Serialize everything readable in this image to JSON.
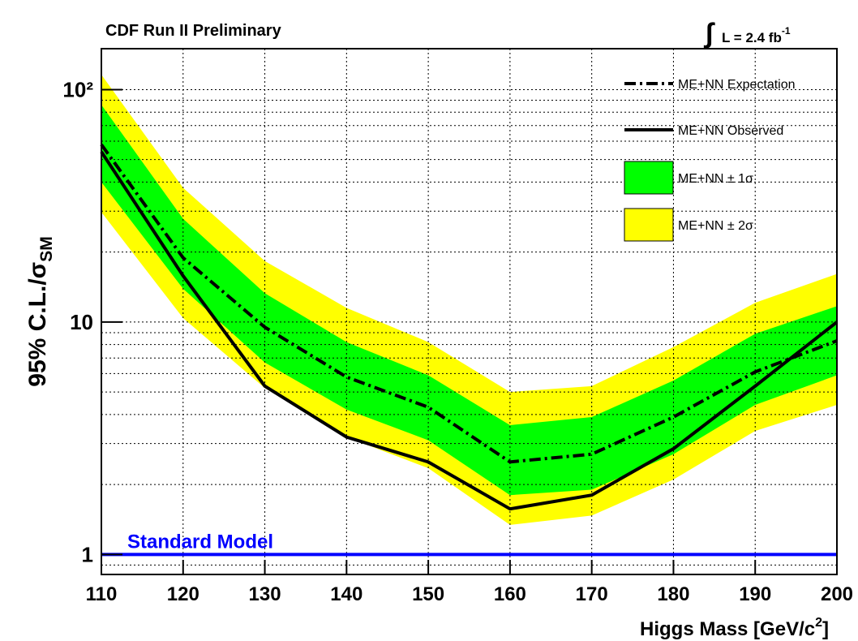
{
  "chart_data": {
    "type": "line",
    "title": "CDF Run II Preliminary",
    "luminosity": {
      "symbol": "∫",
      "text": "L = 2.4 fb",
      "sup": "-1"
    },
    "ylabel": {
      "text": "95% C.L./σ",
      "sub": "SM"
    },
    "xlabel": {
      "text": "Higgs Mass [GeV/c",
      "sup": "2",
      "end": "]"
    },
    "x": [
      110,
      120,
      130,
      140,
      150,
      160,
      170,
      180,
      190,
      200
    ],
    "xlim": [
      110,
      200
    ],
    "xticks": [
      110,
      120,
      130,
      140,
      150,
      160,
      170,
      180,
      190,
      200
    ],
    "ylim": [
      0.82,
      150
    ],
    "log_y": true,
    "yticks": [
      1,
      10,
      {
        "value": 100,
        "label": "10²"
      }
    ],
    "grid": true,
    "series": [
      {
        "name": "ME+NN Expectation",
        "color": "#000000",
        "dash": "dashdot",
        "values": [
          58,
          18.9,
          9.5,
          5.8,
          4.3,
          2.5,
          2.7,
          3.9,
          6.1,
          8.3
        ]
      },
      {
        "name": "ME+NN Observed",
        "color": "#000000",
        "dash": "solid",
        "values": [
          54,
          15.8,
          5.3,
          3.2,
          2.5,
          1.57,
          1.8,
          2.85,
          5.3,
          10
        ]
      }
    ],
    "bands": [
      {
        "name": "ME+NN ± 1σ",
        "color": "#00ff00",
        "upper": [
          86,
          27.8,
          13.3,
          8.2,
          5.9,
          3.6,
          3.9,
          5.6,
          8.9,
          11.7
        ],
        "lower": [
          40,
          13.9,
          6.7,
          4.2,
          3.1,
          1.8,
          1.9,
          2.7,
          4.4,
          5.9
        ]
      },
      {
        "name": "ME+NN ± 2σ",
        "color": "#ffff00",
        "upper": [
          116,
          37.8,
          18.3,
          11.5,
          8.2,
          5.0,
          5.3,
          7.8,
          12.1,
          16.1
        ],
        "lower": [
          29.7,
          10.4,
          5.2,
          3.2,
          2.35,
          1.34,
          1.47,
          2.1,
          3.4,
          4.4
        ]
      }
    ],
    "reference": {
      "value": 1,
      "label": "Standard Model",
      "color": "#0000ff"
    }
  }
}
